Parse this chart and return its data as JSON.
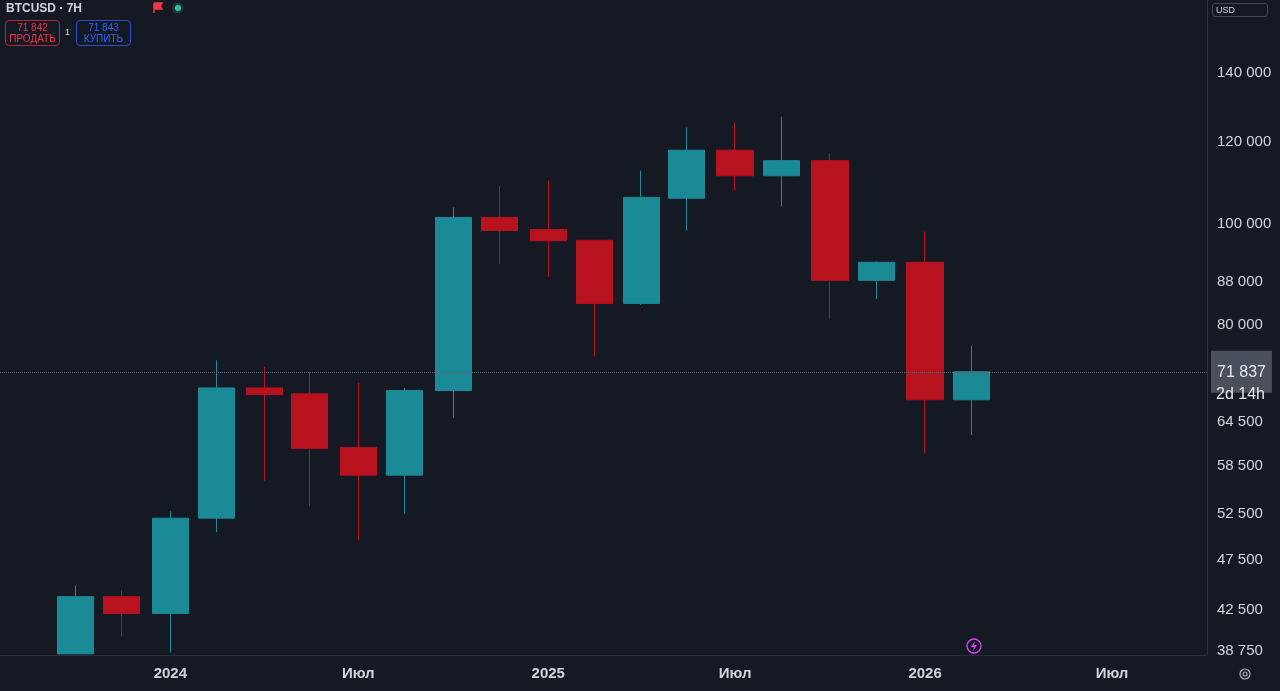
{
  "chart_data": {
    "type": "candlestick",
    "title": "BTCUSD · 7H",
    "x": [
      "2023-10-01",
      "2023-11-15",
      "2024-01-01",
      "2024-02-15",
      "2024-04-01",
      "2024-05-15",
      "2024-07-01",
      "2024-08-15",
      "2024-10-01",
      "2024-11-15",
      "2025-01-01",
      "2025-02-15",
      "2025-04-01",
      "2025-05-15",
      "2025-07-01",
      "2025-08-15",
      "2025-10-01",
      "2025-11-15",
      "2026-01-01",
      "2026-02-15"
    ],
    "ohlc": [
      [
        38400,
        44700,
        38400,
        43600
      ],
      [
        43600,
        44200,
        39900,
        42000
      ],
      [
        42000,
        52700,
        38500,
        51900
      ],
      [
        51900,
        73700,
        50300,
        69300
      ],
      [
        69300,
        72600,
        56400,
        68300
      ],
      [
        68400,
        71800,
        53300,
        60600
      ],
      [
        60700,
        70100,
        49400,
        57100
      ],
      [
        57100,
        69300,
        52400,
        68900
      ],
      [
        68900,
        103500,
        64800,
        101200
      ],
      [
        101200,
        108600,
        91300,
        98300
      ],
      [
        98500,
        109800,
        88700,
        96100
      ],
      [
        96200,
        96200,
        74300,
        83600
      ],
      [
        83600,
        112300,
        83300,
        105800
      ],
      [
        105600,
        123600,
        98300,
        117500
      ],
      [
        117500,
        125000,
        107400,
        111000
      ],
      [
        111000,
        126600,
        103700,
        114800
      ],
      [
        114800,
        116700,
        80700,
        88000
      ],
      [
        88000,
        91800,
        84400,
        91600
      ],
      [
        91600,
        98100,
        59900,
        67500
      ],
      [
        67500,
        76100,
        62400,
        71837
      ]
    ],
    "colors": [
      "#1a8a96",
      "#b8121f",
      "#1a8a96",
      "#1a8a96",
      "#b8121f",
      "#b8121f",
      "#b8121f",
      "#1a8a96",
      "#1a8a96",
      "#b8121f",
      "#b8121f",
      "#b8121f",
      "#1a8a96",
      "#1a8a96",
      "#b8121f",
      "#1a8a96",
      "#b8121f",
      "#1a8a96",
      "#b8121f",
      "#1a8a96"
    ],
    "log": "y",
    "xlim": [
      "2023-07-20",
      "2026-10-01"
    ],
    "xticks": [
      {
        "value": "2024-01-01",
        "label": "2024"
      },
      {
        "value": "2024-07-01",
        "label": "Июл"
      },
      {
        "value": "2025-01-01",
        "label": "2025"
      },
      {
        "value": "2025-07-01",
        "label": "Июл"
      },
      {
        "value": "2026-01-01",
        "label": "2026"
      },
      {
        "value": "2026-07-01",
        "label": "Июл"
      }
    ],
    "ylim": [
      38300,
      164000
    ],
    "yticks": [
      {
        "value": 38750,
        "label": "38 750"
      },
      {
        "value": 42500,
        "label": "42 500"
      },
      {
        "value": 47500,
        "label": "47 500"
      },
      {
        "value": 52500,
        "label": "52 500"
      },
      {
        "value": 58500,
        "label": "58 500"
      },
      {
        "value": 64500,
        "label": "64 500"
      },
      {
        "value": 80000,
        "label": "80 000"
      },
      {
        "value": 88000,
        "label": "88 000"
      },
      {
        "value": 100000,
        "label": "100 000"
      },
      {
        "value": 120000,
        "label": "120 000"
      },
      {
        "value": 140000,
        "label": "140 000"
      }
    ],
    "ref_lines": [
      {
        "axis": "y",
        "value": 71837,
        "label": "71 837",
        "line_style": "dotted",
        "color": "#5d6473"
      }
    ],
    "annotations": [
      "71 842",
      "ПРОДАТЬ",
      "1",
      "71 843",
      "КУПИТЬ",
      "2d 14h",
      "USD"
    ]
  }
}
